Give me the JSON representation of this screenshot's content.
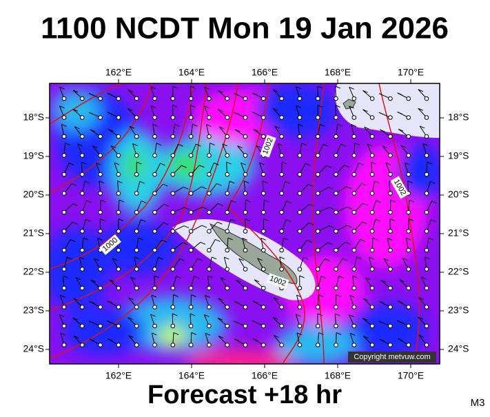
{
  "header": {
    "title": "1100 NCDT Mon 19 Jan 2026"
  },
  "map": {
    "lon_labels": [
      "162°E",
      "164°E",
      "166°E",
      "168°E",
      "170°E"
    ],
    "lat_labels": [
      "18°S",
      "19°S",
      "20°S",
      "21°S",
      "22°S",
      "23°S",
      "24°S"
    ],
    "contour_labels": [
      "1002",
      "1002",
      "1002",
      "1000"
    ],
    "copyright": "Copyright metvuw.com"
  },
  "footer": {
    "forecast": "Forecast +18 hr",
    "code": "M3"
  }
}
